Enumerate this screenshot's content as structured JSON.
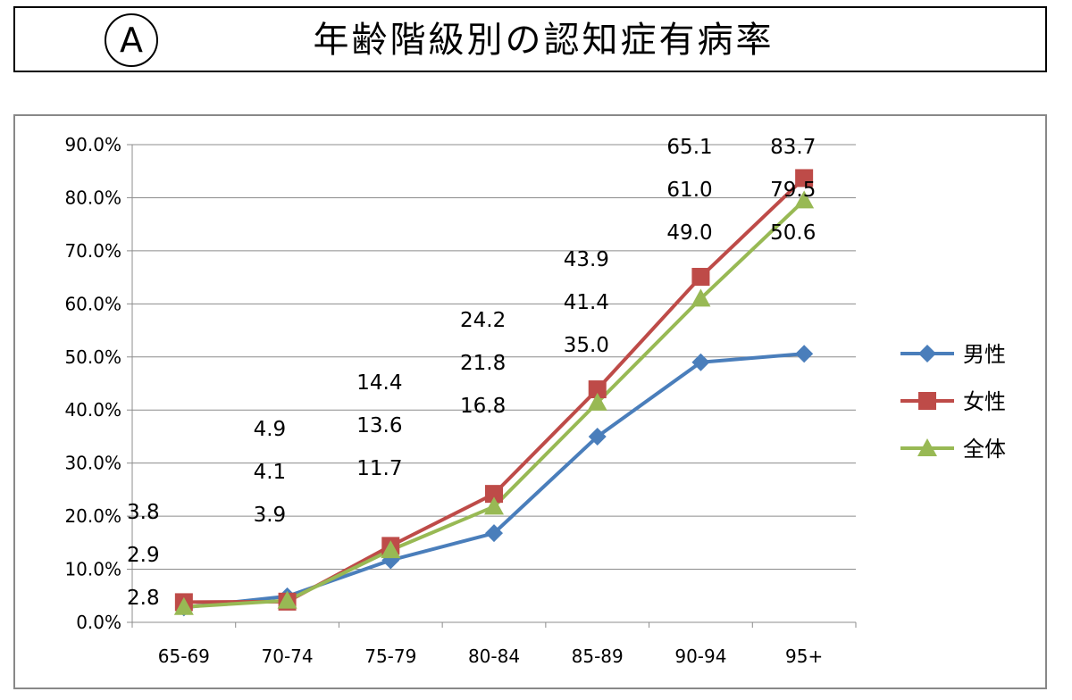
{
  "header": {
    "badge": "A",
    "title": "年齢階級別の認知症有病率"
  },
  "chart_data": {
    "type": "line",
    "title": "年齢階級別の認知症有病率",
    "categories": [
      "65-69",
      "70-74",
      "75-79",
      "80-84",
      "85-89",
      "90-94",
      "95+"
    ],
    "y_ticks": [
      "0.0%",
      "10.0%",
      "20.0%",
      "30.0%",
      "40.0%",
      "50.0%",
      "60.0%",
      "70.0%",
      "80.0%",
      "90.0%"
    ],
    "ylim": [
      0,
      90
    ],
    "grid": true,
    "legend_position": "right",
    "series": [
      {
        "name": "男性",
        "color": "#4a7ebb",
        "marker": "diamond",
        "values": [
          2.8,
          4.9,
          11.7,
          16.8,
          35.0,
          49.0,
          50.6
        ]
      },
      {
        "name": "女性",
        "color": "#be4b48",
        "marker": "square",
        "values": [
          3.8,
          3.9,
          14.4,
          24.2,
          43.9,
          65.1,
          83.7
        ]
      },
      {
        "name": "全体",
        "color": "#98b954",
        "marker": "triangle",
        "values": [
          2.9,
          4.1,
          13.6,
          21.8,
          41.4,
          61.0,
          79.5
        ]
      }
    ],
    "data_labels": [
      [
        "3.8",
        "2.9",
        "2.8"
      ],
      [
        "4.9",
        "4.1",
        "3.9"
      ],
      [
        "14.4",
        "13.6",
        "11.7"
      ],
      [
        "24.2",
        "21.8",
        "16.8"
      ],
      [
        "43.9",
        "41.4",
        "35.0"
      ],
      [
        "65.1",
        "61.0",
        "49.0"
      ],
      [
        "83.7",
        "79.5",
        "50.6"
      ]
    ]
  }
}
